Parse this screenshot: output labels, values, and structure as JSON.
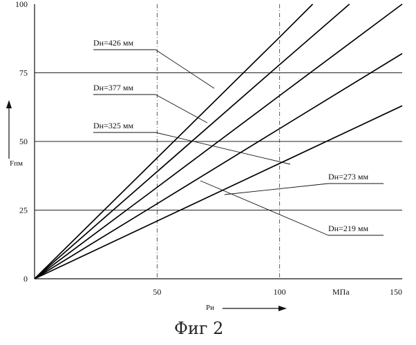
{
  "chart_data": {
    "type": "line",
    "xlabel": "Pи",
    "ylabel": "Fпм",
    "xlim": [
      0,
      150
    ],
    "ylim": [
      0,
      100
    ],
    "x_ticks": [
      "50",
      "100",
      "МПа",
      "150"
    ],
    "x_tick_values": [
      50,
      100,
      125,
      150
    ],
    "y_ticks": [
      "0",
      "25",
      "50",
      "75",
      "100"
    ],
    "y_tick_values": [
      0,
      25,
      50,
      75,
      100
    ],
    "grid": true,
    "series": [
      {
        "name": "Dн=426 мм",
        "x": [
          0,
          50,
          100,
          113.5
        ],
        "y": [
          0,
          44,
          88,
          100
        ]
      },
      {
        "name": "Dн=377 мм",
        "x": [
          0,
          50,
          100,
          128.5
        ],
        "y": [
          0,
          39,
          78,
          100
        ]
      },
      {
        "name": "Dн=325 мм",
        "x": [
          0,
          50,
          100,
          150
        ],
        "y": [
          0,
          33.3,
          66.7,
          100
        ]
      },
      {
        "name": "Dн=273 мм",
        "x": [
          0,
          50,
          100,
          150
        ],
        "y": [
          0,
          27.3,
          54.7,
          82
        ]
      },
      {
        "name": "Dн=219 мм",
        "x": [
          0,
          50,
          100,
          150
        ],
        "y": [
          0,
          21,
          42,
          63
        ]
      }
    ]
  },
  "caption": "Фиг 2"
}
